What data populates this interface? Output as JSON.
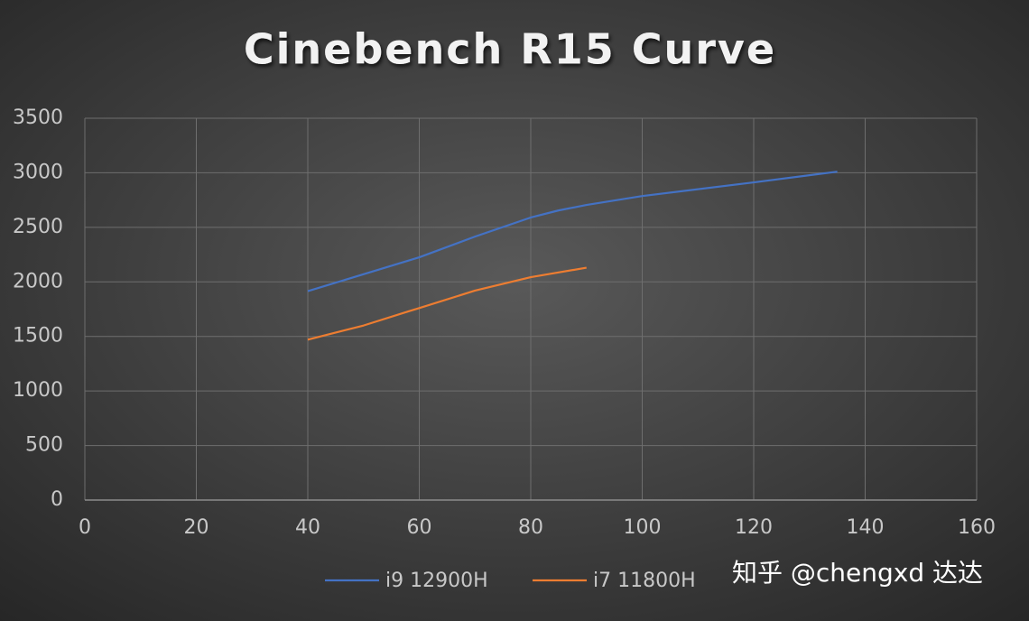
{
  "chart_data": {
    "type": "line",
    "title": "Cinebench R15 Curve",
    "watermark": "知乎 @chengxd 达达",
    "series": [
      {
        "name": "i9 12900H",
        "color": "#4472c4",
        "x": [
          40,
          50,
          60,
          70,
          80,
          85,
          90,
          100,
          120,
          135
        ],
        "values": [
          1915,
          2070,
          2225,
          2415,
          2590,
          2655,
          2705,
          2787,
          2912,
          3010
        ]
      },
      {
        "name": "i7 11800H",
        "color": "#ed7d31",
        "x": [
          40,
          50,
          58,
          60,
          70,
          80,
          90
        ],
        "values": [
          1470,
          1600,
          1729,
          1760,
          1920,
          2043,
          2130
        ]
      }
    ],
    "xlim": [
      0,
      160
    ],
    "xticks": [
      0,
      20,
      40,
      60,
      80,
      100,
      120,
      140,
      160
    ],
    "ylim": [
      0,
      3500
    ],
    "yticks": [
      0,
      500,
      1000,
      1500,
      2000,
      2500,
      3000,
      3500
    ],
    "grid": true,
    "legend": "bottom"
  }
}
